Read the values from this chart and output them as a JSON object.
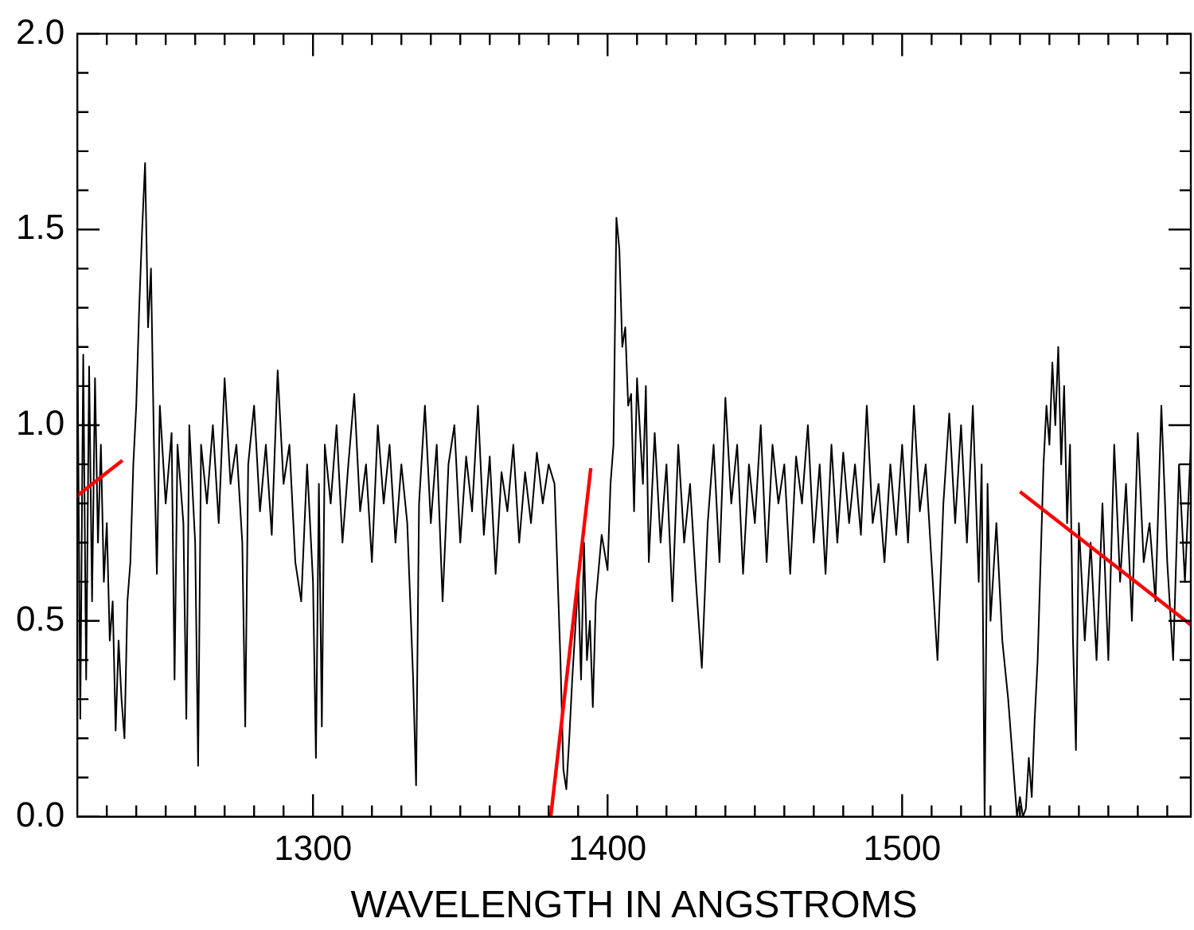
{
  "chart_data": {
    "type": "line",
    "xlabel": "WAVELENGTH IN ANGSTROMS",
    "xlim": [
      1220,
      1598
    ],
    "ylim": [
      0,
      2
    ],
    "xticks": [
      {
        "value": 1230,
        "label": null
      },
      {
        "value": 1240,
        "label": null
      },
      {
        "value": 1250,
        "label": null
      },
      {
        "value": 1260,
        "label": null
      },
      {
        "value": 1270,
        "label": null
      },
      {
        "value": 1280,
        "label": null
      },
      {
        "value": 1290,
        "label": null
      },
      1300,
      {
        "value": 1310,
        "label": null
      },
      {
        "value": 1320,
        "label": null
      },
      {
        "value": 1330,
        "label": null
      },
      {
        "value": 1340,
        "label": null
      },
      {
        "value": 1350,
        "label": null
      },
      {
        "value": 1360,
        "label": null
      },
      {
        "value": 1370,
        "label": null
      },
      {
        "value": 1380,
        "label": null
      },
      {
        "value": 1390,
        "label": null
      },
      1400,
      {
        "value": 1410,
        "label": null
      },
      {
        "value": 1420,
        "label": null
      },
      {
        "value": 1430,
        "label": null
      },
      {
        "value": 1440,
        "label": null
      },
      {
        "value": 1450,
        "label": null
      },
      {
        "value": 1460,
        "label": null
      },
      {
        "value": 1470,
        "label": null
      },
      {
        "value": 1480,
        "label": null
      },
      {
        "value": 1490,
        "label": null
      },
      1500,
      {
        "value": 1510,
        "label": null
      },
      {
        "value": 1520,
        "label": null
      },
      {
        "value": 1530,
        "label": null
      },
      {
        "value": 1540,
        "label": null
      },
      {
        "value": 1550,
        "label": null
      },
      {
        "value": 1560,
        "label": null
      },
      {
        "value": 1570,
        "label": null
      },
      {
        "value": 1580,
        "label": null
      },
      {
        "value": 1590,
        "label": null
      }
    ],
    "yticks": [
      {
        "value": 0,
        "label": "0.0"
      },
      {
        "value": 0.1,
        "label": null
      },
      {
        "value": 0.2,
        "label": null
      },
      {
        "value": 0.3,
        "label": null
      },
      {
        "value": 0.4,
        "label": null
      },
      {
        "value": 0.5,
        "label": "0.5"
      },
      {
        "value": 0.6,
        "label": null
      },
      {
        "value": 0.7,
        "label": null
      },
      {
        "value": 0.8,
        "label": null
      },
      {
        "value": 0.9,
        "label": null
      },
      {
        "value": 1,
        "label": "1.0"
      },
      {
        "value": 1.1,
        "label": null
      },
      {
        "value": 1.2,
        "label": null
      },
      {
        "value": 1.3,
        "label": null
      },
      {
        "value": 1.4,
        "label": null
      },
      {
        "value": 1.5,
        "label": "1.5"
      },
      {
        "value": 1.6,
        "label": null
      },
      {
        "value": 1.7,
        "label": null
      },
      {
        "value": 1.8,
        "label": null
      },
      {
        "value": 1.9,
        "label": null
      },
      {
        "value": 2,
        "label": "2.0"
      }
    ],
    "grid": false,
    "legend": false,
    "marker": "none",
    "line_style": "solid",
    "series": [
      {
        "color": "#000000",
        "x": [
          1220,
          1221,
          1222,
          1223,
          1224,
          1225,
          1226,
          1227,
          1228,
          1229,
          1230,
          1231,
          1232,
          1233,
          1234,
          1235,
          1236,
          1237,
          1238,
          1239,
          1240,
          1241,
          1242,
          1243,
          1244,
          1245,
          1246,
          1247,
          1248,
          1250,
          1252,
          1253,
          1254,
          1256,
          1257,
          1258,
          1260,
          1261,
          1262,
          1264,
          1266,
          1268,
          1270,
          1272,
          1274,
          1276,
          1277,
          1278,
          1280,
          1282,
          1284,
          1286,
          1288,
          1290,
          1292,
          1294,
          1296,
          1298,
          1300,
          1301,
          1302,
          1303,
          1304,
          1306,
          1308,
          1310,
          1312,
          1314,
          1316,
          1318,
          1320,
          1322,
          1324,
          1326,
          1328,
          1330,
          1332,
          1334,
          1335,
          1336,
          1338,
          1340,
          1342,
          1344,
          1346,
          1348,
          1350,
          1352,
          1354,
          1356,
          1358,
          1360,
          1362,
          1364,
          1366,
          1368,
          1370,
          1372,
          1374,
          1376,
          1378,
          1380,
          1382,
          1384,
          1385,
          1386,
          1387,
          1388,
          1390,
          1391,
          1392,
          1393,
          1394,
          1395,
          1396,
          1398,
          1400,
          1401,
          1402,
          1403,
          1404,
          1405,
          1406,
          1407,
          1408,
          1409,
          1410,
          1412,
          1413,
          1414,
          1416,
          1418,
          1420,
          1422,
          1424,
          1426,
          1428,
          1430,
          1432,
          1434,
          1436,
          1438,
          1440,
          1442,
          1444,
          1446,
          1448,
          1450,
          1452,
          1454,
          1456,
          1458,
          1460,
          1462,
          1464,
          1466,
          1468,
          1470,
          1472,
          1474,
          1476,
          1478,
          1480,
          1482,
          1484,
          1486,
          1488,
          1490,
          1492,
          1494,
          1496,
          1498,
          1500,
          1502,
          1504,
          1506,
          1508,
          1510,
          1512,
          1514,
          1516,
          1518,
          1520,
          1522,
          1524,
          1526,
          1527,
          1528,
          1529,
          1530,
          1532,
          1534,
          1536,
          1538,
          1539,
          1540,
          1541,
          1542,
          1543,
          1544,
          1545,
          1546,
          1547,
          1548,
          1549,
          1550,
          1551,
          1552,
          1553,
          1554,
          1555,
          1556,
          1557,
          1558,
          1559,
          1560,
          1562,
          1564,
          1566,
          1568,
          1570,
          1572,
          1574,
          1576,
          1578,
          1580,
          1582,
          1584,
          1586,
          1588,
          1590,
          1592,
          1594,
          1596,
          1598
        ],
        "values": [
          1.25,
          0.25,
          1.18,
          0.35,
          1.15,
          0.55,
          1.12,
          0.7,
          0.95,
          0.6,
          0.75,
          0.45,
          0.55,
          0.22,
          0.45,
          0.3,
          0.2,
          0.55,
          0.65,
          0.9,
          1.05,
          1.3,
          1.5,
          1.67,
          1.25,
          1.4,
          0.95,
          0.62,
          1.05,
          0.8,
          0.98,
          0.35,
          0.95,
          0.75,
          0.25,
          1.0,
          0.7,
          0.13,
          0.95,
          0.8,
          1.0,
          0.75,
          1.12,
          0.85,
          0.95,
          0.7,
          0.23,
          0.9,
          1.05,
          0.78,
          0.95,
          0.72,
          1.14,
          0.85,
          0.95,
          0.65,
          0.55,
          0.9,
          0.6,
          0.15,
          0.85,
          0.23,
          0.95,
          0.8,
          1.0,
          0.7,
          0.9,
          1.08,
          0.78,
          0.9,
          0.65,
          1.0,
          0.8,
          0.95,
          0.7,
          0.9,
          0.75,
          0.35,
          0.08,
          0.8,
          1.05,
          0.75,
          0.95,
          0.55,
          0.9,
          1.0,
          0.7,
          0.92,
          0.78,
          1.05,
          0.72,
          0.92,
          0.62,
          0.88,
          0.78,
          0.95,
          0.7,
          0.88,
          0.75,
          0.93,
          0.8,
          0.9,
          0.85,
          0.4,
          0.12,
          0.07,
          0.2,
          0.35,
          0.6,
          0.35,
          0.7,
          0.4,
          0.5,
          0.28,
          0.55,
          0.72,
          0.63,
          0.85,
          0.95,
          1.53,
          1.45,
          1.2,
          1.25,
          1.05,
          1.08,
          0.78,
          1.12,
          0.85,
          1.1,
          0.65,
          0.98,
          0.7,
          0.9,
          0.55,
          0.95,
          0.7,
          0.85,
          0.6,
          0.38,
          0.75,
          0.95,
          0.65,
          1.07,
          0.8,
          0.95,
          0.62,
          0.9,
          0.75,
          1.0,
          0.65,
          0.95,
          0.8,
          0.9,
          0.62,
          0.92,
          0.8,
          1.0,
          0.7,
          0.9,
          0.62,
          0.95,
          0.7,
          0.93,
          0.75,
          0.9,
          0.72,
          1.05,
          0.75,
          0.85,
          0.65,
          0.9,
          0.72,
          0.95,
          0.7,
          1.05,
          0.78,
          0.9,
          0.65,
          0.4,
          0.8,
          1.03,
          0.75,
          1.0,
          0.7,
          1.05,
          0.6,
          0.9,
          0.0,
          0.85,
          0.5,
          0.75,
          0.45,
          0.3,
          0.1,
          0.0,
          0.05,
          0.0,
          0.02,
          0.15,
          0.05,
          0.25,
          0.4,
          0.65,
          0.9,
          1.05,
          0.95,
          1.16,
          1.0,
          1.2,
          0.9,
          1.1,
          0.75,
          0.95,
          0.45,
          0.17,
          0.75,
          0.45,
          0.7,
          0.4,
          0.8,
          0.4,
          0.95,
          0.6,
          0.85,
          0.5,
          0.98,
          0.65,
          0.75,
          0.55,
          1.05,
          0.65,
          0.4,
          0.9,
          0.6,
          0.95
        ]
      },
      {
        "color": "#ff0000",
        "x": [
          1220,
          1235.3
        ],
        "values": [
          0.82,
          0.91
        ]
      },
      {
        "color": "#ff0000",
        "x": [
          1380.7,
          1394.3
        ],
        "values": [
          0,
          0.89
        ]
      },
      {
        "color": "#ff0000",
        "x": [
          1540,
          1598
        ],
        "values": [
          0.83,
          0.49
        ]
      }
    ]
  }
}
